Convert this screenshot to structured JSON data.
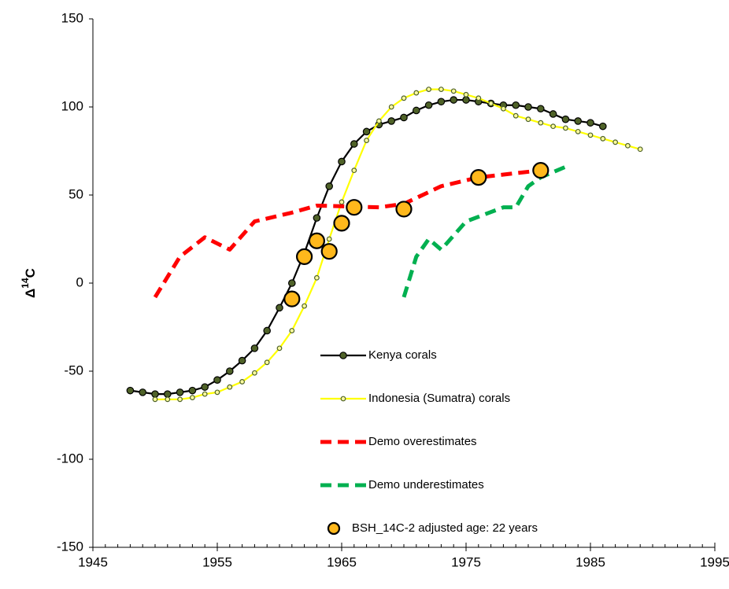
{
  "chart_data": {
    "type": "line",
    "y_label": [
      "Δ",
      "14",
      "C"
    ],
    "xlim": [
      1945,
      1995
    ],
    "xticks": [
      1945,
      1955,
      1965,
      1975,
      1985,
      1995
    ],
    "ylim": [
      -150,
      150
    ],
    "yticks": [
      -150,
      -100,
      -50,
      0,
      50,
      100,
      150
    ],
    "series": [
      {
        "name": "Kenya corals",
        "color": "#000000",
        "marker_color": "#4f6228",
        "line_style": "solid",
        "marker": "medium",
        "x": [
          1948,
          1949,
          1950,
          1951,
          1952,
          1953,
          1954,
          1955,
          1956,
          1957,
          1958,
          1959,
          1960,
          1961,
          1962,
          1963,
          1964,
          1965,
          1966,
          1967,
          1968,
          1969,
          1970,
          1971,
          1972,
          1973,
          1974,
          1975,
          1976,
          1977,
          1978,
          1979,
          1980,
          1981,
          1982,
          1983,
          1984,
          1985,
          1986
        ],
        "values": [
          -61,
          -62,
          -63,
          -63,
          -62,
          -61,
          -59,
          -55,
          -50,
          -44,
          -37,
          -27,
          -14,
          0,
          17,
          37,
          55,
          69,
          79,
          86,
          90,
          92,
          94,
          98,
          101,
          103,
          104,
          104,
          103,
          102,
          101,
          101,
          100,
          99,
          96,
          93,
          92,
          91,
          89
        ]
      },
      {
        "name": "Indonesia (Sumatra) corals",
        "color": "#ffff00",
        "marker_color": "#ffffa0",
        "line_style": "solid",
        "marker": "small",
        "x": [
          1950,
          1951,
          1952,
          1953,
          1954,
          1955,
          1956,
          1957,
          1958,
          1959,
          1960,
          1961,
          1962,
          1963,
          1964,
          1965,
          1966,
          1967,
          1968,
          1969,
          1970,
          1971,
          1972,
          1973,
          1974,
          1975,
          1976,
          1977,
          1978,
          1979,
          1980,
          1981,
          1982,
          1983,
          1984,
          1985,
          1986,
          1987,
          1988,
          1989
        ],
        "values": [
          -66,
          -66,
          -66,
          -65,
          -63,
          -62,
          -59,
          -56,
          -51,
          -45,
          -37,
          -27,
          -13,
          3,
          25,
          46,
          64,
          81,
          92,
          100,
          105,
          108,
          110,
          110,
          109,
          107,
          105,
          102,
          99,
          95,
          93,
          91,
          89,
          88,
          86,
          84,
          82,
          80,
          78,
          76
        ]
      },
      {
        "name": "Demo overestimates",
        "color": "#ff0000",
        "line_style": "dashed",
        "marker": "none",
        "x": [
          1950,
          1952,
          1954,
          1956,
          1958,
          1961,
          1963,
          1968,
          1970,
          1973,
          1976,
          1981
        ],
        "values": [
          -8,
          15,
          26,
          19,
          35,
          40,
          44,
          43,
          45,
          55,
          60,
          64
        ]
      },
      {
        "name": "Demo underestimates",
        "color": "#00b050",
        "line_style": "dashed",
        "marker": "none",
        "x": [
          1970,
          1971,
          1972,
          1973,
          1975,
          1978,
          1979,
          1980,
          1981,
          1983
        ],
        "values": [
          -8,
          15,
          25,
          19,
          35,
          43,
          43,
          55,
          60,
          66
        ]
      },
      {
        "name": "BSH_14C-2 adjusted age: 22 years",
        "color": "#ffb81c",
        "marker_color": "#ffb81c",
        "line_style": "none",
        "marker": "large",
        "x": [
          1961,
          1962,
          1963,
          1964,
          1965,
          1966,
          1970,
          1976,
          1981
        ],
        "values": [
          -9,
          15,
          24,
          18,
          34,
          43,
          42,
          60,
          64
        ]
      }
    ]
  }
}
